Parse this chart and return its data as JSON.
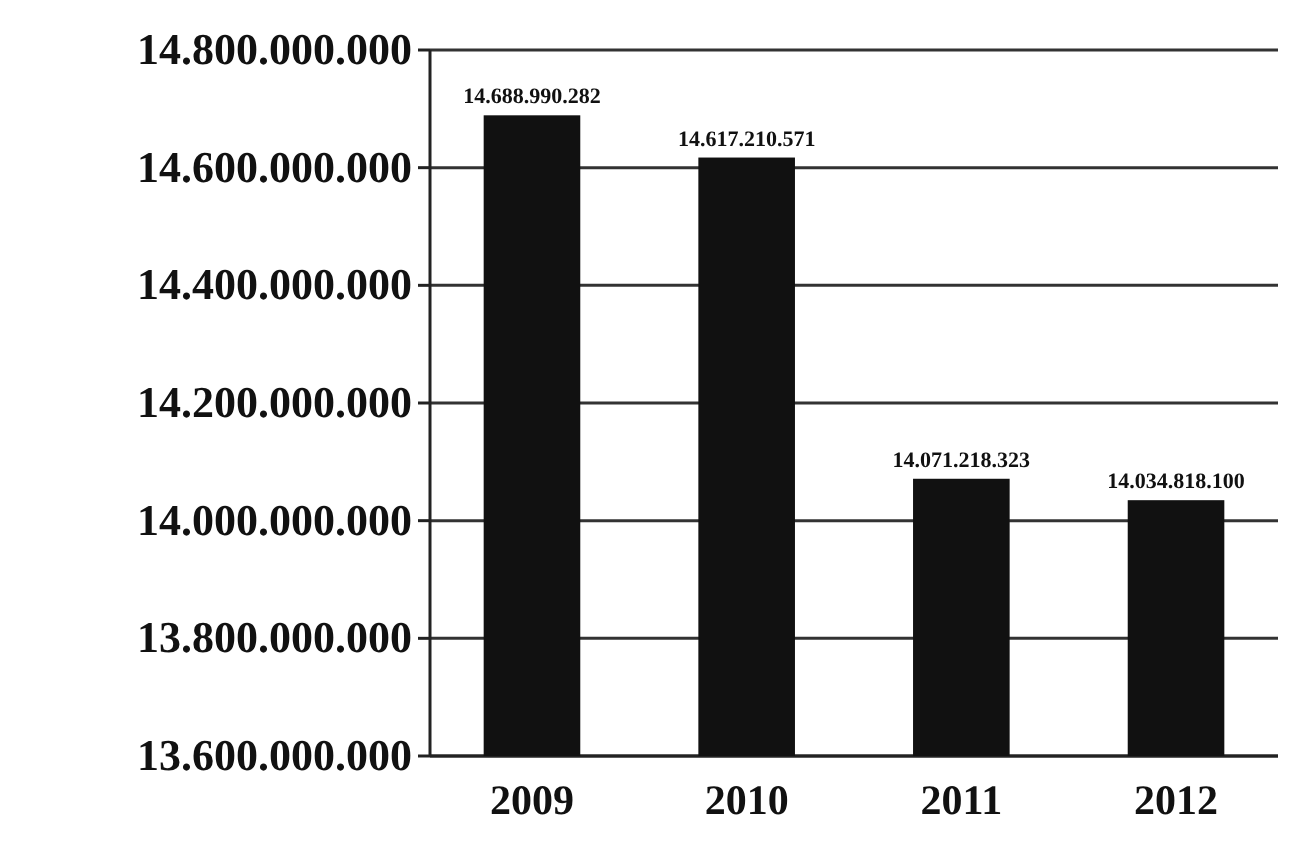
{
  "chart_data": {
    "type": "bar",
    "categories": [
      "2009",
      "2010",
      "2011",
      "2012"
    ],
    "values": [
      14688990282,
      14617210571,
      14071218323,
      14034818100
    ],
    "color": "#111111",
    "ylim": [
      13600000000,
      14800000000
    ],
    "yticks": [
      {
        "value": 13600000000,
        "label": "13.600.000.000"
      },
      {
        "value": 13800000000,
        "label": "13.800.000.000"
      },
      {
        "value": 14000000000,
        "label": "14.000.000.000"
      },
      {
        "value": 14200000000,
        "label": "14.200.000.000"
      },
      {
        "value": 14400000000,
        "label": "14.400.000.000"
      },
      {
        "value": 14600000000,
        "label": "14.600.000.000"
      },
      {
        "value": 14800000000,
        "label": "14.800.000.000"
      }
    ],
    "grid": "y",
    "value_labels": [
      "14.688.990.282",
      "14.617.210.571",
      "14.071.218.323",
      "14.034.818.100"
    ]
  }
}
